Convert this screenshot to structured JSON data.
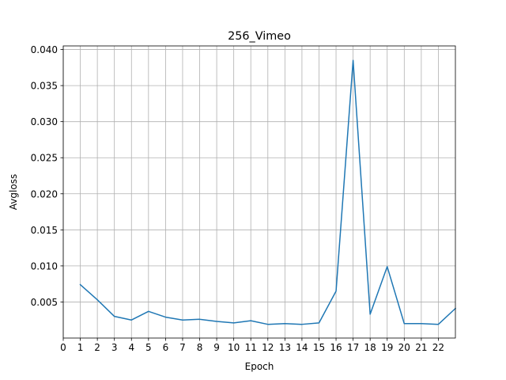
{
  "chart_data": {
    "type": "line",
    "title": "256_Vimeo",
    "xlabel": "Epoch",
    "ylabel": "Avgloss",
    "xlim": [
      0,
      23
    ],
    "ylim": [
      0.0,
      0.0405
    ],
    "x_ticks": [
      0,
      1,
      2,
      3,
      4,
      5,
      6,
      7,
      8,
      9,
      10,
      11,
      12,
      13,
      14,
      15,
      16,
      17,
      18,
      19,
      20,
      21,
      22
    ],
    "y_ticks": [
      0.005,
      0.01,
      0.015,
      0.02,
      0.025,
      0.03,
      0.035,
      0.04
    ],
    "y_tick_labels": [
      "0.005",
      "0.010",
      "0.015",
      "0.020",
      "0.025",
      "0.030",
      "0.035",
      "0.040"
    ],
    "grid": true,
    "series": [
      {
        "color": "#1f77b4",
        "x": [
          1,
          2,
          3,
          4,
          5,
          6,
          7,
          8,
          9,
          10,
          11,
          12,
          13,
          14,
          15,
          16,
          17,
          18,
          19,
          20,
          21,
          22,
          23
        ],
        "y": [
          0.0074,
          0.0053,
          0.003,
          0.0025,
          0.0037,
          0.0029,
          0.0025,
          0.0026,
          0.0023,
          0.0021,
          0.0024,
          0.0019,
          0.002,
          0.0019,
          0.0021,
          0.0065,
          0.0385,
          0.0033,
          0.0099,
          0.002,
          0.002,
          0.0019,
          0.0041
        ]
      }
    ]
  }
}
